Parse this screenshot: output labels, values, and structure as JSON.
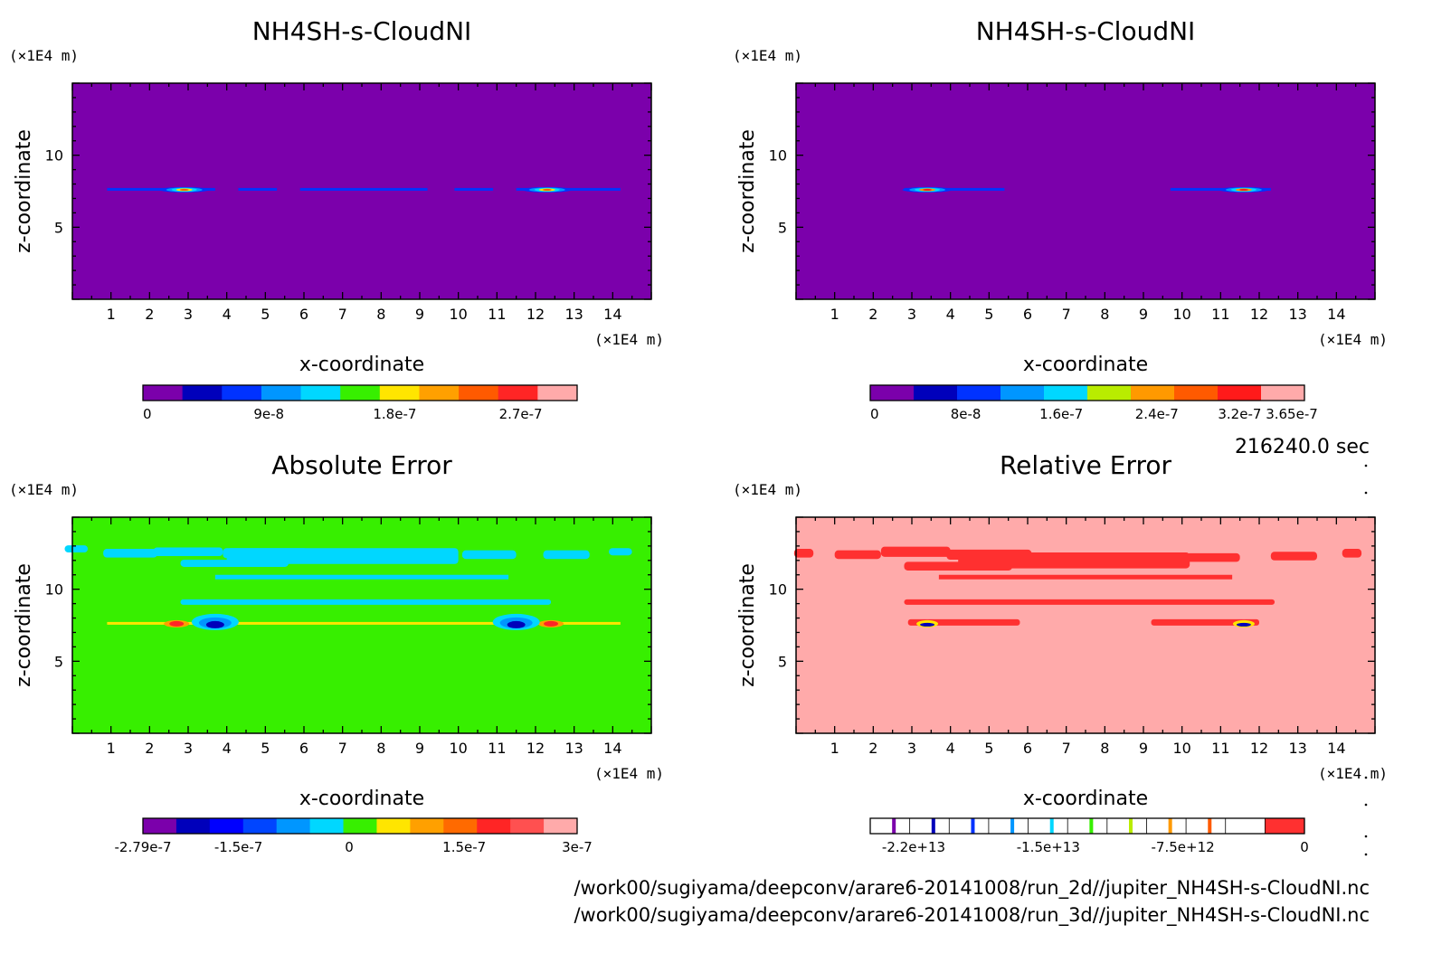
{
  "footer": {
    "time": "216240.0 sec",
    "path_2d": "/work00/sugiyama/deepconv/arare6-20141008/run_2d//jupiter_NH4SH-s-CloudNI.nc",
    "path_3d": "/work00/sugiyama/deepconv/arare6-20141008/run_3d//jupiter_NH4SH-s-CloudNI.nc"
  },
  "chart_data": [
    {
      "type": "heatmap",
      "title": "NH4SH-s-CloudNI",
      "xlabel": "x-coordinate",
      "ylabel": "z-coordinate",
      "x_unit": "(×1E4 m)",
      "y_unit": "(×1E4 m)",
      "xlim": [
        0,
        15
      ],
      "ylim": [
        0,
        15
      ],
      "xticks": [
        "1",
        "2",
        "3",
        "4",
        "5",
        "6",
        "7",
        "8",
        "9",
        "10",
        "11",
        "12",
        "13",
        "14"
      ],
      "yticks": [
        "5",
        "10"
      ],
      "background": "#7b00ab",
      "cloud_level": 7.6,
      "cloud_segments": [
        [
          0.9,
          3.7
        ],
        [
          4.3,
          5.3
        ],
        [
          5.9,
          9.2
        ],
        [
          9.9,
          10.9
        ],
        [
          11.5,
          14.2
        ]
      ],
      "cloud_peaks": [
        2.9,
        12.3
      ],
      "colorbar": {
        "colors": [
          "#7b00ab",
          "#0000bb",
          "#0032ff",
          "#0096ff",
          "#00d7ff",
          "#37ef00",
          "#ffe500",
          "#ffa000",
          "#ff5a00",
          "#ff2525",
          "#ffaaaa"
        ],
        "labels": [
          "0",
          "9e-8",
          "1.8e-7",
          "2.7e-7"
        ]
      }
    },
    {
      "type": "heatmap",
      "title": "NH4SH-s-CloudNI",
      "xlabel": "x-coordinate",
      "ylabel": "z-coordinate",
      "x_unit": "(×1E4 m)",
      "y_unit": "(×1E4 m)",
      "xlim": [
        0,
        15
      ],
      "ylim": [
        0,
        15
      ],
      "xticks": [
        "1",
        "2",
        "3",
        "4",
        "5",
        "6",
        "7",
        "8",
        "9",
        "10",
        "11",
        "12",
        "13",
        "14"
      ],
      "yticks": [
        "5",
        "10"
      ],
      "background": "#7b00ab",
      "cloud_level": 7.6,
      "cloud_segments": [
        [
          2.8,
          5.4
        ],
        [
          9.7,
          12.3
        ]
      ],
      "cloud_peaks": [
        3.4,
        11.6
      ],
      "colorbar": {
        "colors": [
          "#7b00ab",
          "#0000bb",
          "#0032ff",
          "#0096ff",
          "#00d7ff",
          "#b9ec00",
          "#ff9900",
          "#ff5a00",
          "#ff1a1a",
          "#ffaaaa"
        ],
        "labels": [
          "0",
          "8e-8",
          "1.6e-7",
          "2.4e-7",
          "3.2e-7",
          "3.65e-7"
        ]
      }
    },
    {
      "type": "heatmap",
      "title": "Absolute Error",
      "xlabel": "x-coordinate",
      "ylabel": "z-coordinate",
      "x_unit": "(×1E4 m)",
      "y_unit": "(×1E4 m)",
      "xlim": [
        0,
        15
      ],
      "ylim": [
        0,
        15
      ],
      "xticks": [
        "1",
        "2",
        "3",
        "4",
        "5",
        "6",
        "7",
        "8",
        "9",
        "10",
        "11",
        "12",
        "13",
        "14"
      ],
      "yticks": [
        "5",
        "10"
      ],
      "background": "#37ef00",
      "band_color": "#00d7ff",
      "cloud_level": 7.6,
      "colorbar": {
        "colors": [
          "#7b00ab",
          "#0000bb",
          "#0000ff",
          "#0045ff",
          "#0096ff",
          "#00d7ff",
          "#37ef00",
          "#ffe500",
          "#ffa000",
          "#ff6a00",
          "#ff2525",
          "#ff5050",
          "#ffaaaa"
        ],
        "labels": [
          "-2.79e-7",
          "-1.5e-7",
          "0",
          "1.5e-7",
          "3e-7"
        ]
      }
    },
    {
      "type": "heatmap",
      "title": "Relative Error",
      "xlabel": "x-coordinate",
      "ylabel": "z-coordinate",
      "x_unit": "(×1E4 m)",
      "y_unit": "(×1E4 m)",
      "xlim": [
        0,
        15
      ],
      "ylim": [
        0,
        15
      ],
      "xticks": [
        "1",
        "2",
        "3",
        "4",
        "5",
        "6",
        "7",
        "8",
        "9",
        "10",
        "11",
        "12",
        "13",
        "14"
      ],
      "yticks": [
        "5",
        "10"
      ],
      "background": "#ffaaaa",
      "band_color": "#ff3030",
      "cloud_level": 7.6,
      "colorbar": {
        "colors": [
          "#ffffff",
          "#ffffff",
          "#ffffff",
          "#ffffff",
          "#ffffff",
          "#ffffff",
          "#ffffff",
          "#ffffff",
          "#ffffff",
          "#ffffff",
          "#ff3030"
        ],
        "line_colors": [
          "#7b00ab",
          "#0000bb",
          "#0032ff",
          "#0096ff",
          "#00d7ff",
          "#37ef00",
          "#b9ec00",
          "#ff9900",
          "#ff5a00"
        ],
        "labels": [
          "-2.2e+13",
          "-1.5e+13",
          "-7.5e+12",
          "0"
        ]
      }
    }
  ]
}
